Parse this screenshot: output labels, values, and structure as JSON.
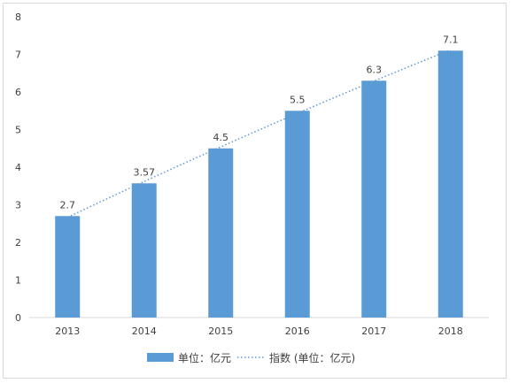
{
  "chart_data": {
    "type": "bar",
    "categories": [
      "2013",
      "2014",
      "2015",
      "2016",
      "2017",
      "2018"
    ],
    "series": [
      {
        "name": "单位：亿元",
        "type": "bar",
        "values": [
          2.7,
          3.57,
          4.5,
          5.5,
          6.3,
          7.1
        ],
        "color": "#5b9bd5"
      },
      {
        "name": "指数 (单位：亿元)",
        "type": "trendline",
        "style": "dotted",
        "color": "#5b9bd5"
      }
    ],
    "data_labels": [
      "2.7",
      "3.57",
      "4.5",
      "5.5",
      "6.3",
      "7.1"
    ],
    "ylim": [
      0,
      8
    ],
    "yticks": [
      "0",
      "1",
      "2",
      "3",
      "4",
      "5",
      "6",
      "7",
      "8"
    ],
    "grid": false,
    "legend_position": "bottom"
  }
}
